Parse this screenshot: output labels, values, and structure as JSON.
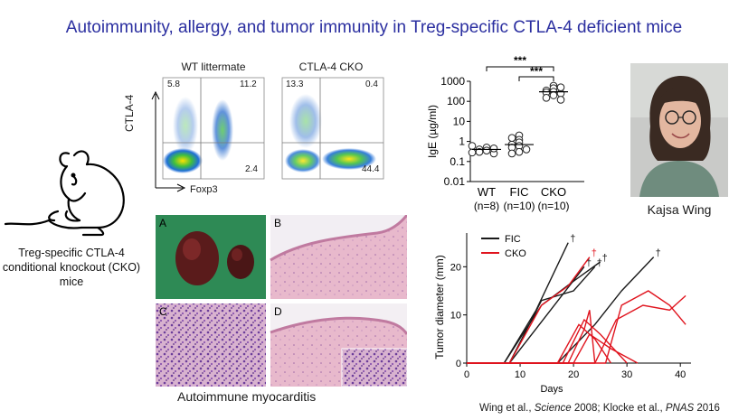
{
  "title": "Autoimmunity, allergy, and tumor immunity in Treg-specific CTLA-4 deficient mice",
  "mouse": {
    "caption_line1": "Treg-specific CTLA-4",
    "caption_line2": "conditional knockout (CKO)",
    "caption_line3": "mice"
  },
  "flow": {
    "y_axis": "CTLA-4",
    "x_axis": "Foxp3",
    "panels": [
      {
        "title": "WT littermate",
        "q_ul": "5.8",
        "q_ur": "11.2",
        "q_lr": "2.4"
      },
      {
        "title": "CTLA-4 CKO",
        "q_ul": "13.3",
        "q_ur": "0.4",
        "q_lr": "44.4"
      }
    ]
  },
  "histology": {
    "panels": [
      "A",
      "B",
      "C",
      "D"
    ],
    "caption": "Autoimmune myocarditis"
  },
  "person": {
    "name": "Kajsa Wing"
  },
  "citation": {
    "part1": "Wing et al., ",
    "journal1": "Science",
    "part2": " 2008; Klocke et al., ",
    "journal2": "PNAS",
    "part3": " 2016"
  },
  "chart_data": [
    {
      "type": "scatter",
      "ylabel": "IgE (µg/ml)",
      "yscale": "log",
      "ylim": [
        0.01,
        1000
      ],
      "yticks": [
        "1000",
        "100",
        "10",
        "1",
        "0.1",
        "0.01"
      ],
      "categories": [
        "WT",
        "FIC",
        "CKO"
      ],
      "category_n": [
        "(n=8)",
        "(n=10)",
        "(n=10)"
      ],
      "groups": [
        {
          "name": "WT",
          "values": [
            0.5,
            0.4,
            0.35,
            0.3,
            0.25,
            0.45,
            0.6,
            0.28
          ],
          "median": 0.4
        },
        {
          "name": "FIC",
          "values": [
            2.0,
            1.2,
            0.9,
            0.7,
            0.6,
            0.5,
            0.4,
            0.3,
            0.25,
            1.5
          ],
          "median": 0.7
        },
        {
          "name": "CKO",
          "values": [
            600,
            450,
            350,
            300,
            280,
            250,
            200,
            150,
            120,
            500
          ],
          "median": 300
        }
      ],
      "annotations": [
        {
          "between": [
            "WT",
            "CKO"
          ],
          "label": "***"
        },
        {
          "between": [
            "FIC",
            "CKO"
          ],
          "label": "***"
        }
      ]
    },
    {
      "type": "line",
      "xlabel": "Days",
      "ylabel": "Tumor diameter (mm)",
      "xlim": [
        0,
        42
      ],
      "ylim": [
        0,
        27
      ],
      "xticks": [
        0,
        10,
        20,
        30,
        40
      ],
      "yticks": [
        0,
        10,
        20
      ],
      "death_marker": "†",
      "legend": [
        {
          "label": "FIC",
          "color": "#1a1a1a"
        },
        {
          "label": "CKO",
          "color": "#e0141e"
        }
      ],
      "series": [
        {
          "group": "FIC",
          "x": [
            0,
            7,
            14,
            20,
            25
          ],
          "y": [
            0,
            0,
            12,
            17,
            21
          ],
          "death": true
        },
        {
          "group": "FIC",
          "x": [
            0,
            7,
            13,
            19
          ],
          "y": [
            0,
            0,
            11,
            25
          ],
          "death": true
        },
        {
          "group": "FIC",
          "x": [
            0,
            8,
            14,
            20,
            24
          ],
          "y": [
            0,
            0,
            13,
            15,
            20
          ],
          "death": true
        },
        {
          "group": "FIC",
          "x": [
            0,
            8,
            15,
            22
          ],
          "y": [
            0,
            0,
            10,
            20
          ],
          "death": true
        },
        {
          "group": "FIC",
          "x": [
            0,
            17,
            24,
            29,
            35
          ],
          "y": [
            0,
            0,
            8,
            15,
            22
          ],
          "death": true
        },
        {
          "group": "CKO",
          "x": [
            0,
            8,
            14,
            19,
            23
          ],
          "y": [
            0,
            0,
            12,
            16,
            22
          ],
          "death": true
        },
        {
          "group": "CKO",
          "x": [
            0,
            17,
            21,
            24,
            27
          ],
          "y": [
            0,
            0,
            8,
            5,
            0
          ],
          "death": false
        },
        {
          "group": "CKO",
          "x": [
            0,
            18,
            22,
            25,
            30
          ],
          "y": [
            0,
            0,
            9,
            6,
            0
          ],
          "death": false
        },
        {
          "group": "CKO",
          "x": [
            0,
            19,
            22,
            23,
            24
          ],
          "y": [
            0,
            0,
            7,
            11,
            0
          ],
          "death": false
        },
        {
          "group": "CKO",
          "x": [
            0,
            20,
            23,
            27,
            32
          ],
          "y": [
            0,
            0,
            6,
            3,
            0
          ],
          "death": false
        },
        {
          "group": "CKO",
          "x": [
            0,
            26,
            29,
            34,
            38,
            41
          ],
          "y": [
            0,
            0,
            12,
            15,
            12,
            8
          ],
          "death": false
        },
        {
          "group": "CKO",
          "x": [
            0,
            24,
            28,
            33,
            38,
            41
          ],
          "y": [
            0,
            0,
            9,
            12,
            11,
            14
          ],
          "death": false
        }
      ]
    }
  ]
}
